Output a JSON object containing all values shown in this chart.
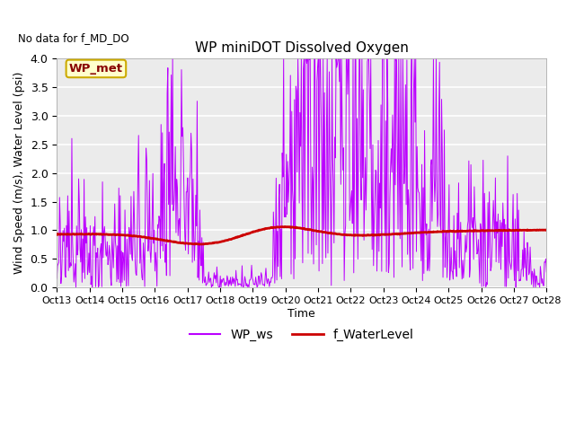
{
  "title": "WP miniDOT Dissolved Oxygen",
  "top_left_text": "No data for f_MD_DO",
  "ylabel": "Wind Speed (m/s), Water Level (psi)",
  "xlabel": "Time",
  "ylim": [
    0.0,
    4.0
  ],
  "yticks": [
    0.0,
    0.5,
    1.0,
    1.5,
    2.0,
    2.5,
    3.0,
    3.5,
    4.0
  ],
  "legend_labels": [
    "WP_ws",
    "f_WaterLevel"
  ],
  "legend_colors": [
    "#BB00FF",
    "#CC0000"
  ],
  "wp_met_box_text": "WP_met",
  "wp_met_box_facecolor": "#FFFFCC",
  "wp_met_box_edgecolor": "#CCAA00",
  "wp_met_text_color": "#880000",
  "ws_color": "#BB00FF",
  "wl_color": "#CC0000",
  "background_color": "#EBEBEB",
  "grid_color": "white",
  "xtick_labels": [
    "Oct 13",
    "Oct 14",
    "Oct 15",
    "Oct 16",
    "Oct 17",
    "Oct 18",
    "Oct 19",
    "Oct 20",
    "Oct 21",
    "Oct 22",
    "Oct 23",
    "Oct 24",
    "Oct 25",
    "Oct 26",
    "Oct 27",
    "Oct 28"
  ]
}
